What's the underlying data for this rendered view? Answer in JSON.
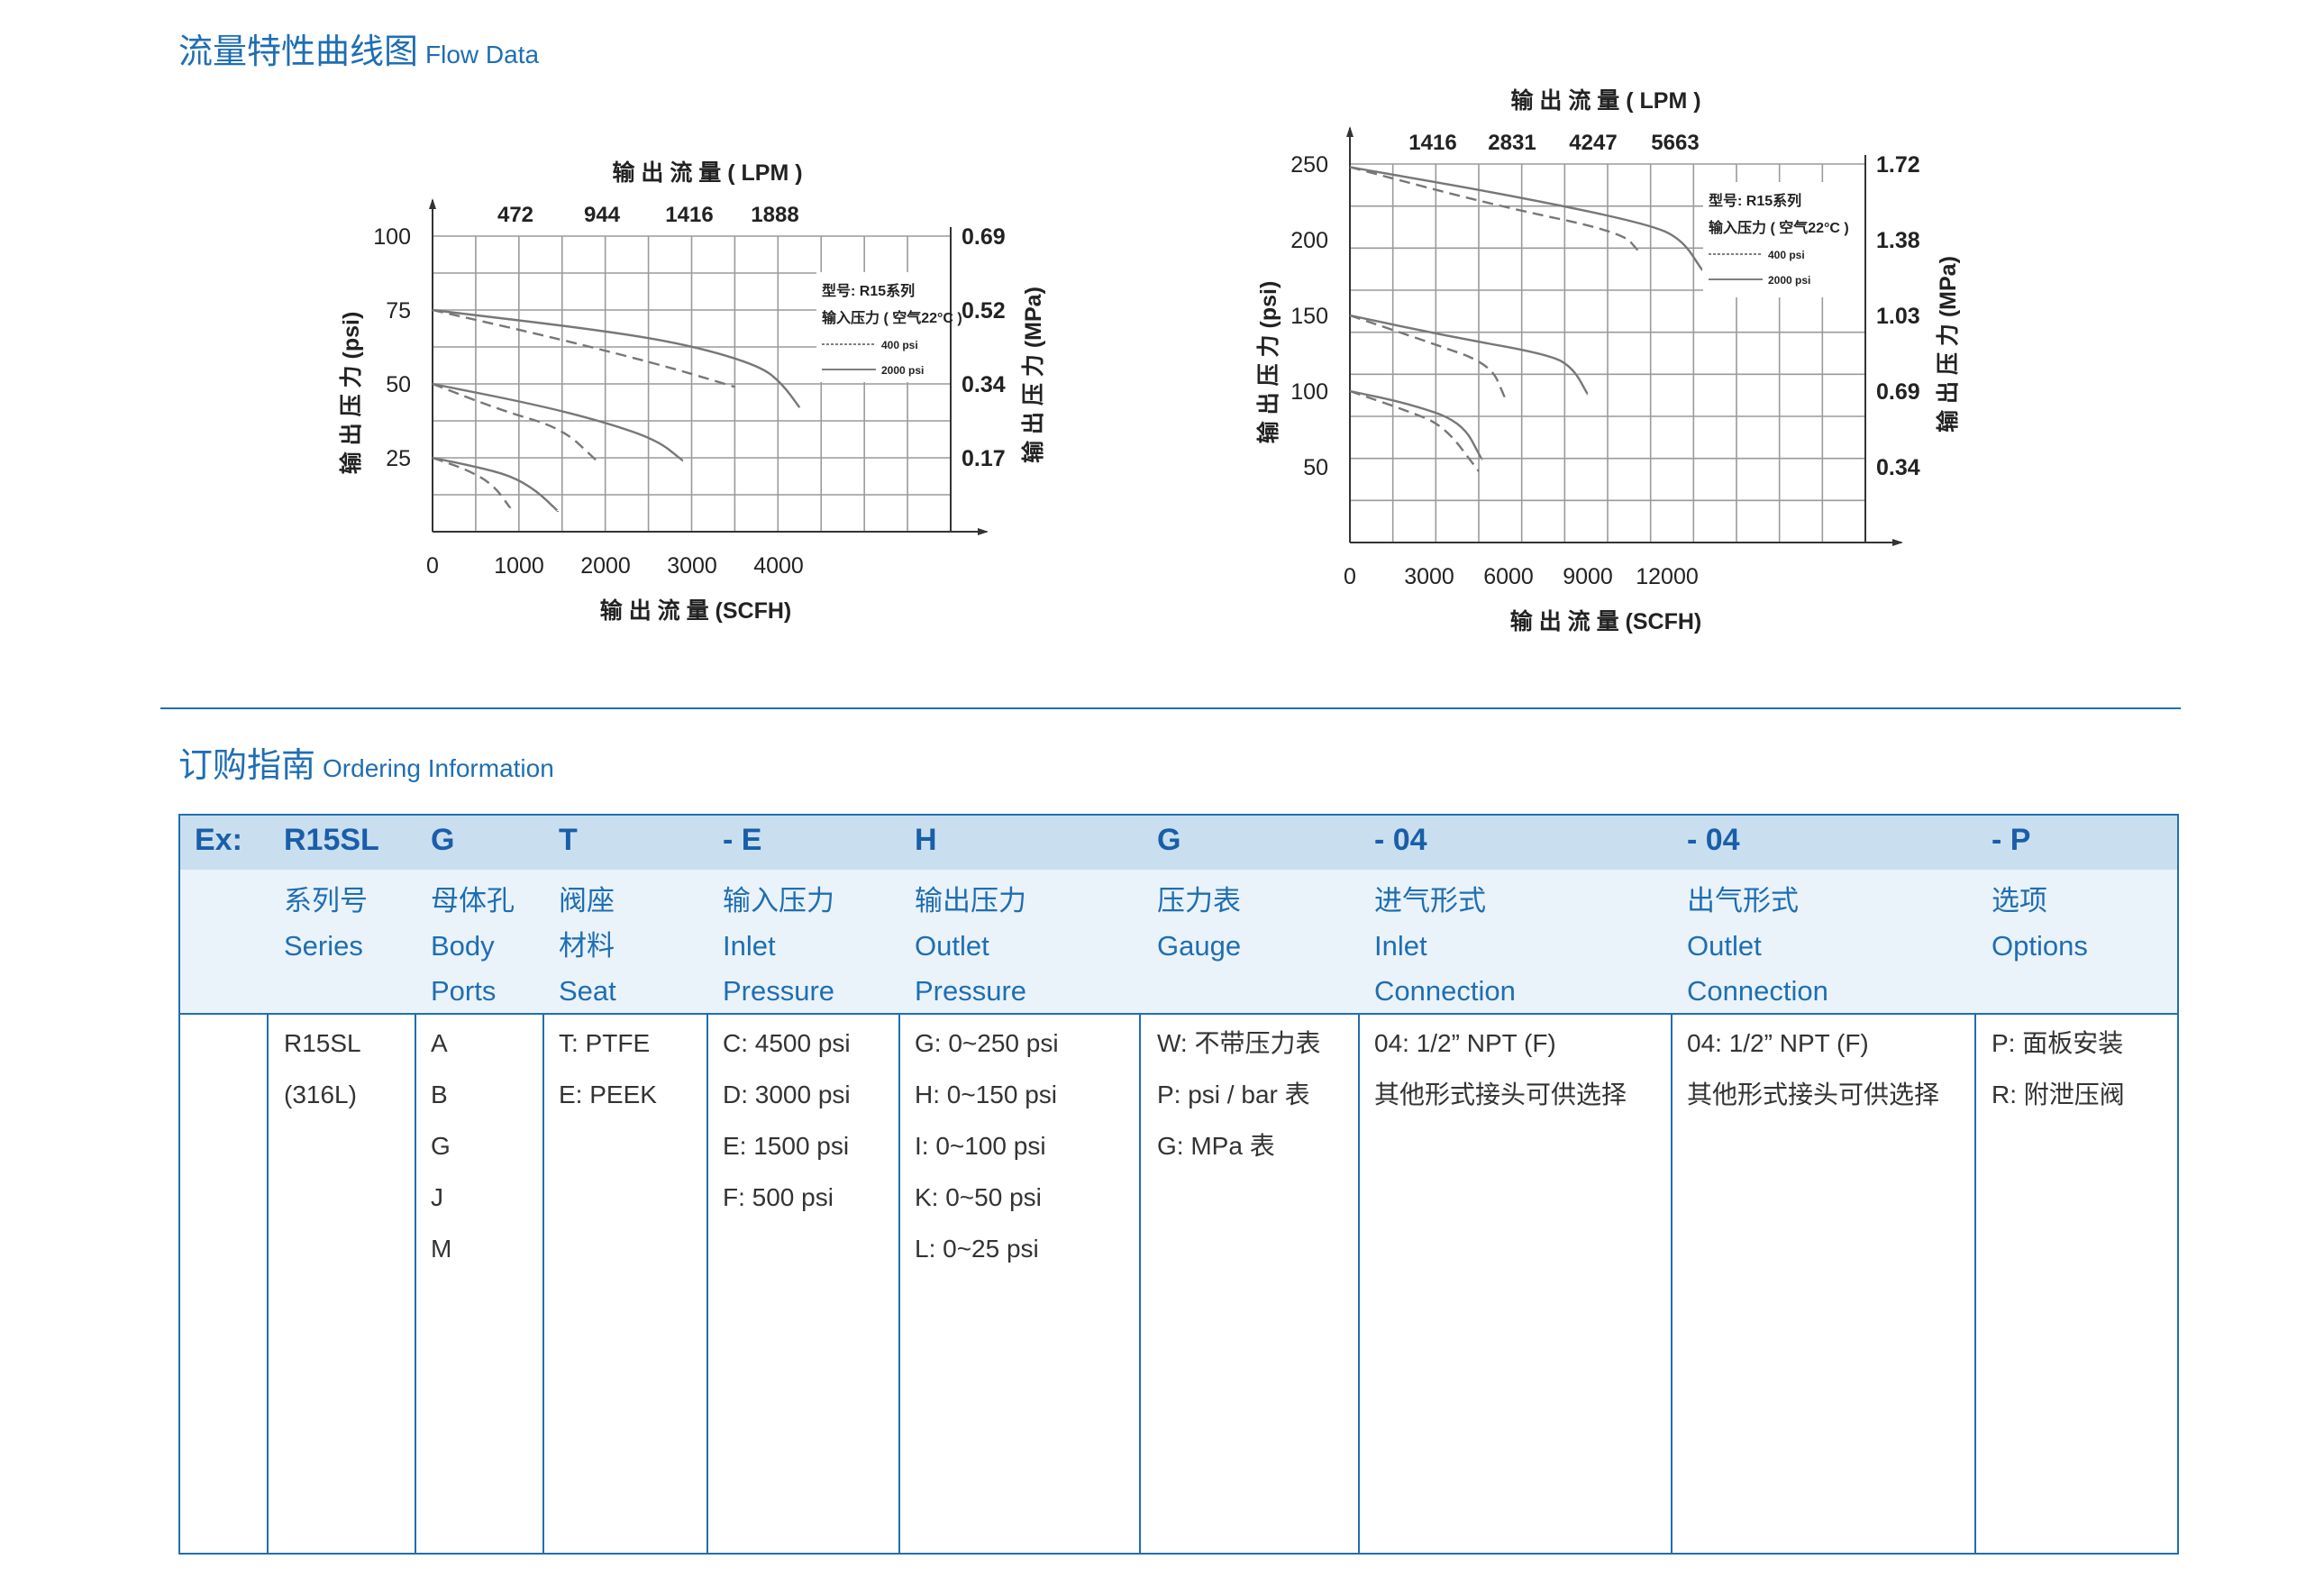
{
  "flow_section": {
    "title_cn": "流量特性曲线图",
    "title_en": "Flow Data"
  },
  "chart_data": [
    {
      "type": "line",
      "top_axis_label": "输 出 流 量 ( LPM )",
      "top_ticks": [
        "472",
        "944",
        "1416",
        "1888"
      ],
      "bottom_ticks": [
        "0",
        "1000",
        "2000",
        "3000",
        "4000"
      ],
      "xlabel": "输 出 流 量 (SCFH)",
      "ylabel": "输 出 压 力 (psi)",
      "y_ticks": [
        "100",
        "75",
        "50",
        "25"
      ],
      "right_ticks": [
        "0.69",
        "0.52",
        "0.34",
        "0.17"
      ],
      "right_label": "输 出 压 力 (MPa)",
      "xlim": [
        0,
        6000
      ],
      "ylim": [
        0,
        100
      ],
      "grid": true,
      "legend_position": "top-right",
      "legend": {
        "model": "型号: R15系列",
        "inlet": "输入压力 ( 空气22°C )",
        "dashed": "400 psi",
        "solid": "2000 psi"
      },
      "series": [
        {
          "name": "2000 psi",
          "style": "solid",
          "x": [
            0,
            2000,
            3000,
            3800,
            4050,
            4250
          ],
          "y": [
            75,
            68,
            63,
            56,
            50,
            42
          ]
        },
        {
          "name": "400 psi",
          "style": "dashed",
          "x": [
            0,
            1500,
            2700,
            3500
          ],
          "y": [
            75,
            65,
            56,
            49
          ]
        },
        {
          "name": "2000 psi",
          "style": "solid",
          "x": [
            0,
            1200,
            2000,
            2600,
            2900
          ],
          "y": [
            50,
            43,
            37,
            31,
            24
          ]
        },
        {
          "name": "400 psi",
          "style": "dashed",
          "x": [
            0,
            800,
            1500,
            1900
          ],
          "y": [
            50,
            41,
            35,
            24
          ]
        },
        {
          "name": "2000 psi",
          "style": "solid",
          "x": [
            0,
            500,
            900,
            1200,
            1450
          ],
          "y": [
            25,
            22,
            19,
            14,
            7
          ]
        },
        {
          "name": "400 psi",
          "style": "dashed",
          "x": [
            0,
            400,
            700,
            900
          ],
          "y": [
            25,
            21,
            16,
            8
          ]
        }
      ]
    },
    {
      "type": "line",
      "top_axis_label": "输 出 流 量 ( LPM )",
      "top_ticks": [
        "1416",
        "2831",
        "4247",
        "5663"
      ],
      "bottom_ticks": [
        "0",
        "3000",
        "6000",
        "9000",
        "12000"
      ],
      "xlabel": "输 出 流 量 (SCFH)",
      "ylabel": "输 出 压 力 (psi)",
      "y_ticks": [
        "250",
        "200",
        "150",
        "100",
        "50"
      ],
      "right_ticks": [
        "1.72",
        "1.38",
        "1.03",
        "0.69",
        "0.34"
      ],
      "right_label": "输 出 压 力 (MPa)",
      "xlim": [
        0,
        18000
      ],
      "ylim": [
        0,
        250
      ],
      "grid": true,
      "legend_position": "top-right",
      "legend": {
        "model": "型号: R15系列",
        "inlet": "输入压力 ( 空气22°C )",
        "dashed": "400 psi",
        "solid": "2000 psi"
      },
      "series": [
        {
          "name": "2000 psi",
          "style": "solid",
          "x": [
            0,
            6000,
            10500,
            11600,
            12300
          ],
          "y": [
            248,
            228,
            210,
            200,
            180
          ]
        },
        {
          "name": "400 psi",
          "style": "dashed",
          "x": [
            0,
            5000,
            9500,
            10100
          ],
          "y": [
            248,
            223,
            205,
            192
          ]
        },
        {
          "name": "2000 psi",
          "style": "solid",
          "x": [
            0,
            3500,
            7000,
            7800,
            8300
          ],
          "y": [
            150,
            136,
            124,
            115,
            98
          ]
        },
        {
          "name": "400 psi",
          "style": "dashed",
          "x": [
            0,
            2800,
            4900,
            5400
          ],
          "y": [
            150,
            132,
            118,
            96
          ]
        },
        {
          "name": "2000 psi",
          "style": "solid",
          "x": [
            0,
            2000,
            3900,
            4600
          ],
          "y": [
            100,
            92,
            80,
            55
          ]
        },
        {
          "name": "400 psi",
          "style": "dashed",
          "x": [
            0,
            2000,
            3300,
            4500
          ],
          "y": [
            100,
            87,
            77,
            47
          ]
        }
      ]
    }
  ],
  "ordering": {
    "title_cn": "订购指南",
    "title_en": "Ordering Information",
    "ex_row": {
      "ex": "Ex:",
      "series": "R15SL",
      "body": "G",
      "seat": "T",
      "inlet_p": "-    E",
      "outlet_p": "H",
      "gauge": "G",
      "inlet_c": "-    04",
      "outlet_c": "-    04",
      "options": "-    P"
    },
    "columns": [
      {
        "head": [
          "系列号",
          "Series"
        ],
        "items": [
          "R15SL",
          "(316L)"
        ]
      },
      {
        "head": [
          "母体孔",
          "Body",
          "Ports"
        ],
        "items": [
          "A",
          "B",
          "G",
          "J",
          "M"
        ]
      },
      {
        "head": [
          "阀座",
          "材料",
          "Seat"
        ],
        "items": [
          "T: PTFE",
          "E: PEEK"
        ]
      },
      {
        "head": [
          "输入压力",
          "Inlet",
          "Pressure"
        ],
        "items": [
          "C: 4500 psi",
          "D: 3000 psi",
          "E: 1500 psi",
          "F: 500 psi"
        ]
      },
      {
        "head": [
          "输出压力",
          "Outlet",
          "Pressure"
        ],
        "items": [
          "G: 0~250 psi",
          "H: 0~150 psi",
          "I:  0~100 psi",
          "K: 0~50 psi",
          "L: 0~25 psi"
        ]
      },
      {
        "head": [
          "压力表",
          "Gauge"
        ],
        "items": [
          "W: 不带压力表",
          "P: psi / bar 表",
          "G: MPa 表"
        ]
      },
      {
        "head": [
          "进气形式",
          "Inlet",
          "Connection"
        ],
        "items": [
          "04: 1/2” NPT (F)",
          "其他形式接头可供选择"
        ]
      },
      {
        "head": [
          "出气形式",
          "Outlet",
          "Connection"
        ],
        "items": [
          "04: 1/2” NPT (F)",
          "其他形式接头可供选择"
        ]
      },
      {
        "head": [
          "选项",
          "Options"
        ],
        "items": [
          "P: 面板安装",
          "R: 附泄压阀"
        ]
      }
    ]
  }
}
